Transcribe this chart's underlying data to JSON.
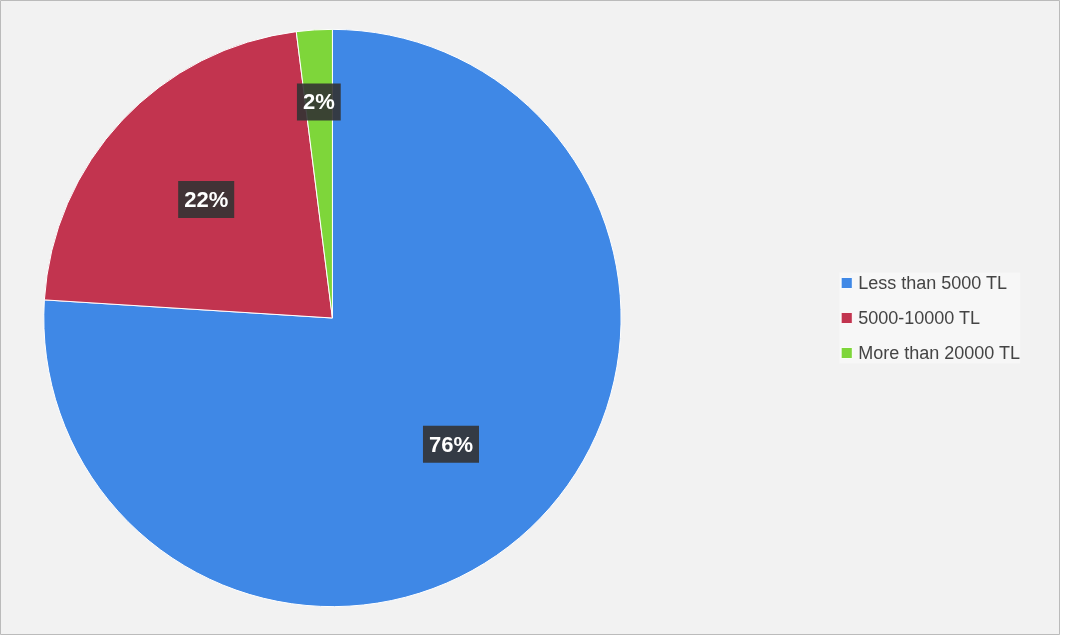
{
  "chart_data": {
    "type": "pie",
    "categories": [
      "Less than 5000 TL",
      "5000-10000 TL",
      "More than 20000 TL"
    ],
    "values": [
      76,
      22,
      2
    ],
    "colors": [
      "#3f88e6",
      "#c2344f",
      "#7ed63a"
    ],
    "value_labels": [
      "76%",
      "22%",
      "2%"
    ],
    "legend": "right"
  }
}
